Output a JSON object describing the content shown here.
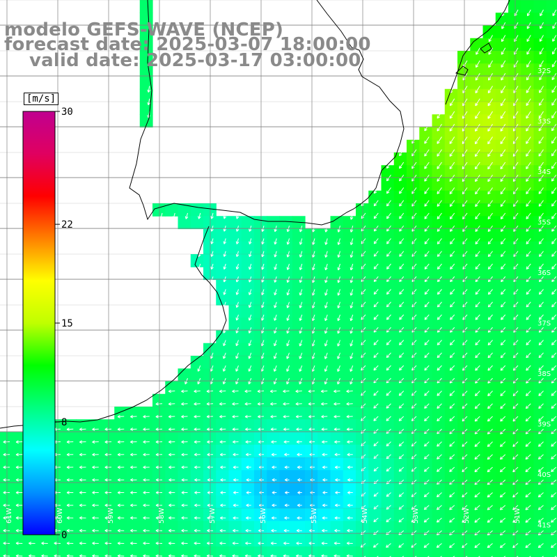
{
  "header": {
    "title": "modelo GEFS-WAVE (NCEP)",
    "forecast_date": "forecast date: 2025-03-07 18:00:00",
    "valid_date": "valid date: 2025-03-17 03:00:00"
  },
  "colorbar": {
    "unit": "[m/s]",
    "ticks": [
      "30",
      "22",
      "15",
      "8",
      "0"
    ],
    "tick_values": [
      30,
      22,
      15,
      8,
      0
    ],
    "range": [
      0,
      30
    ],
    "colors": [
      "#0000ff",
      "#0090ff",
      "#00ffff",
      "#00ff80",
      "#00ff00",
      "#c0ff00",
      "#ffff00",
      "#ff8000",
      "#ff0000",
      "#e00060",
      "#c00090"
    ]
  },
  "lat_labels": [
    "32S",
    "33S",
    "34S",
    "35S",
    "36S",
    "37S",
    "38S",
    "39S",
    "40S",
    "41S"
  ],
  "lon_labels": [
    "61W",
    "60W",
    "59W",
    "58W",
    "57W",
    "56W",
    "55W",
    "54W",
    "53W",
    "52W",
    "51W"
  ],
  "colors": {
    "land": "#ffffff",
    "coast": "#000000",
    "grid": "#808080",
    "title": "#8a8a8a",
    "arrow": "#ffffff"
  }
}
